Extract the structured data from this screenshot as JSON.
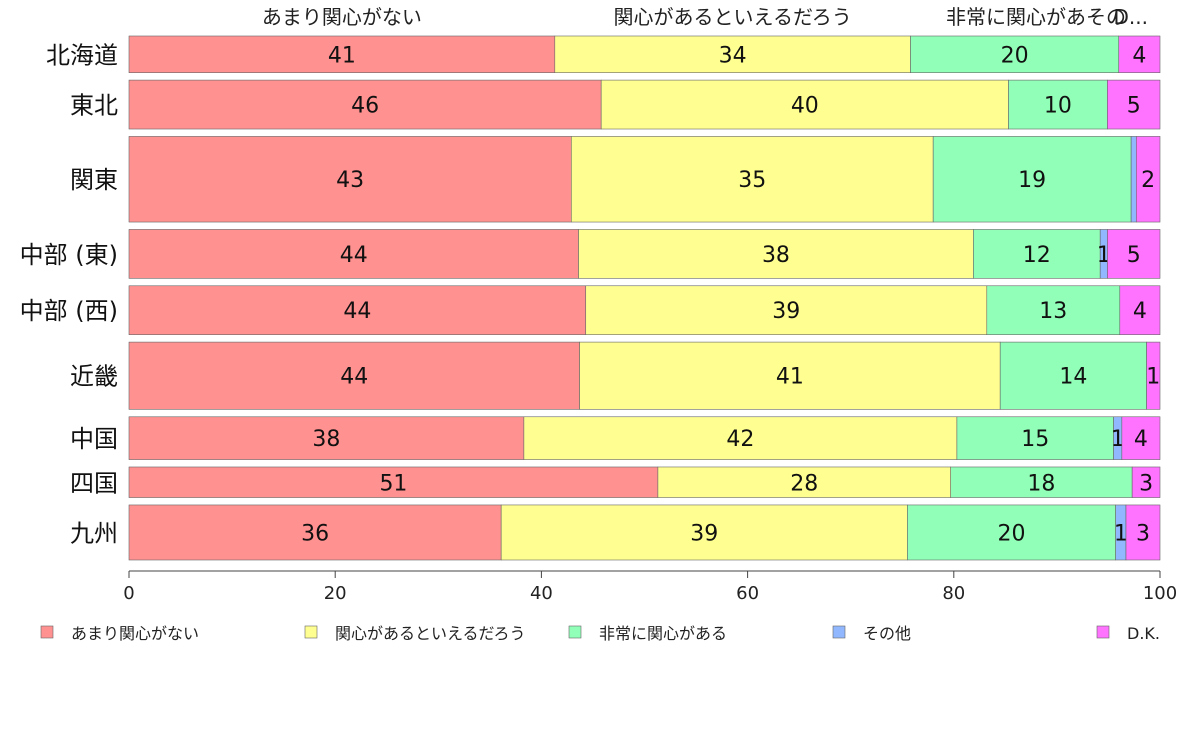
{
  "chart_data": {
    "type": "bar",
    "orientation": "horizontal",
    "stacked": true,
    "title": "",
    "xlabel": "",
    "ylabel": "",
    "xlim": [
      0,
      100
    ],
    "x_ticks": [
      "0",
      "20",
      "40",
      "60",
      "80",
      "100"
    ],
    "categories": [
      "北海道",
      "東北",
      "関東",
      "中部 (東)",
      "中部 (西)",
      "近畿",
      "中国",
      "四国",
      "九州"
    ],
    "bar_weights": [
      6,
      8,
      14,
      8,
      8,
      11,
      7,
      5,
      9
    ],
    "series": [
      {
        "name": "あまり関心がない",
        "color": "#ff9190",
        "values": [
          41.3,
          45.8,
          42.9,
          43.6,
          44.3,
          43.7,
          38.3,
          51.3,
          36.1
        ],
        "labels": [
          "41",
          "46",
          "43",
          "44",
          "44",
          "44",
          "38",
          "51",
          "36"
        ]
      },
      {
        "name": "関心があるといえるだろう",
        "color": "#ffff91",
        "values": [
          34.5,
          39.5,
          35.1,
          38.3,
          38.9,
          40.8,
          42.0,
          28.4,
          39.4
        ],
        "labels": [
          "34",
          "40",
          "35",
          "38",
          "39",
          "41",
          "42",
          "28",
          "39"
        ]
      },
      {
        "name": "非常に関心がある",
        "color": "#91ffb8",
        "values": [
          20.2,
          9.6,
          19.2,
          12.3,
          12.9,
          14.2,
          15.2,
          17.6,
          20.2
        ],
        "labels": [
          "20",
          "10",
          "19",
          "12",
          "13",
          "14",
          "15",
          "18",
          "20"
        ]
      },
      {
        "name": "その他",
        "color": "#91b8ff",
        "values": [
          0.0,
          0.0,
          0.5,
          0.7,
          0.0,
          0.0,
          0.8,
          0.0,
          1.0
        ],
        "labels": [
          "",
          "",
          "",
          "1",
          "",
          "",
          "1",
          "",
          "1"
        ]
      },
      {
        "name": "D.K.",
        "color": "#ff73ff",
        "values": [
          4.0,
          5.1,
          2.3,
          5.1,
          3.9,
          1.3,
          3.7,
          2.7,
          3.3
        ],
        "labels": [
          "4",
          "5",
          "2",
          "5",
          "4",
          "1",
          "4",
          "3",
          "3"
        ]
      }
    ],
    "top_labels": [
      "あまり関心がない",
      "関心があるといえるだろう",
      "非常に関心があその",
      "D..."
    ],
    "legend": {
      "placement": "bottom",
      "entries": [
        "あまり関心がない",
        "関心があるといえるだろう",
        "非常に関心がある",
        "その他",
        "D.K."
      ]
    },
    "grid": false
  }
}
